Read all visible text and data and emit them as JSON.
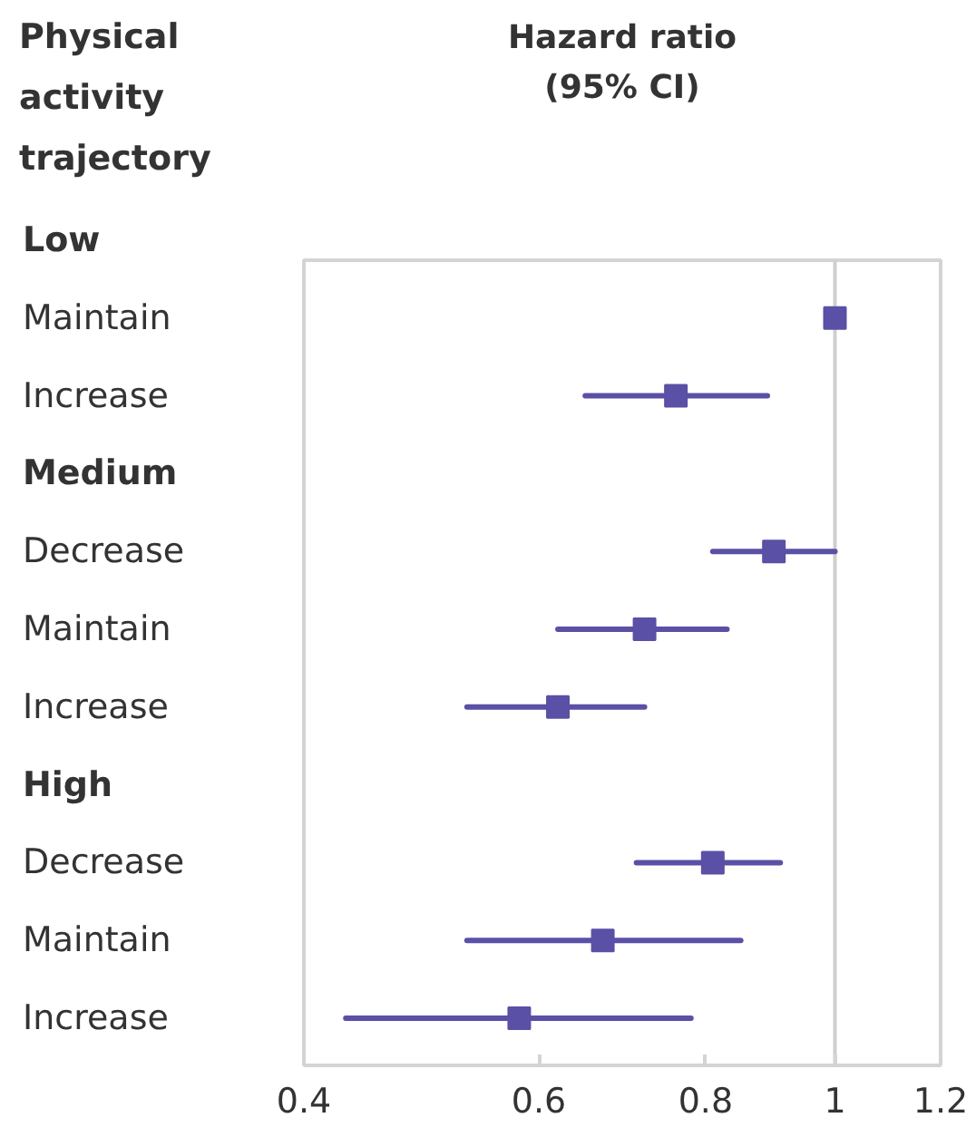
{
  "chart_data": {
    "type": "scatter",
    "orientation": "horizontal",
    "ylabel": "Physical activity trajectory",
    "title": "Hazard ratio (95% CI)",
    "categories": [
      "Low",
      "Maintain",
      "Increase",
      "Medium",
      "Decrease",
      "Maintain",
      "Increase",
      "High",
      "Decrease",
      "Maintain",
      "Increase"
    ],
    "values": [
      null,
      1,
      0.76,
      null,
      0.9,
      0.72,
      0.62,
      null,
      0.81,
      0.67,
      0.58
    ],
    "errors": [
      null,
      null,
      [
        0.65,
        0.89
      ],
      null,
      [
        0.81,
        1
      ],
      [
        0.62,
        0.83
      ],
      [
        0.53,
        0.72
      ],
      null,
      [
        0.71,
        0.91
      ],
      [
        0.53,
        0.85
      ],
      [
        0.43,
        0.78
      ]
    ],
    "color": "#5a50a6",
    "marker": "square",
    "log": "x",
    "grid": false,
    "xlim": [
      0.4,
      1.2
    ],
    "xticks": [
      0.4,
      0.6,
      0.8,
      1,
      1.2
    ],
    "ref_lines": [
      {
        "axis": "x",
        "value": 1,
        "color": "#cfcfcf"
      }
    ]
  }
}
